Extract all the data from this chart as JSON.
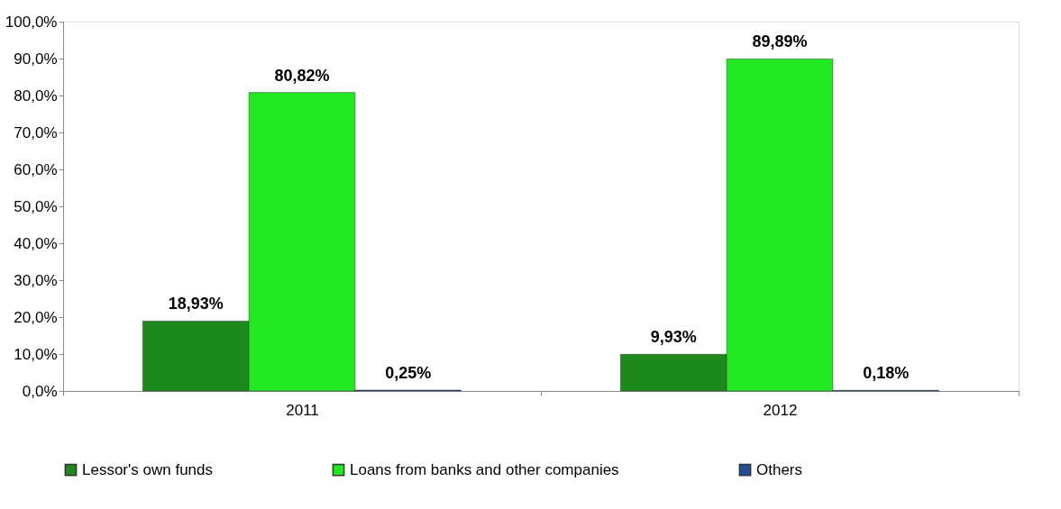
{
  "chart_data": {
    "type": "bar",
    "categories": [
      "2011",
      "2012"
    ],
    "series": [
      {
        "name": "Lessor's own funds",
        "color": "#1e8a1e",
        "values": [
          18.93,
          9.93
        ],
        "value_labels": [
          "18,93%",
          "9,93%"
        ]
      },
      {
        "name": "Loans from banks and other companies",
        "color": "#22e822",
        "values": [
          80.82,
          89.89
        ],
        "value_labels": [
          "80,82%",
          "89,89%"
        ]
      },
      {
        "name": "Others",
        "color": "#1f4f9f",
        "values": [
          0.25,
          0.18
        ],
        "value_labels": [
          "0,25%",
          "0,18%"
        ]
      }
    ],
    "ylim": [
      0,
      100
    ],
    "yticks": [
      {
        "value": 0,
        "label": "0,0%"
      },
      {
        "value": 10,
        "label": "10,0%"
      },
      {
        "value": 20,
        "label": "20,0%"
      },
      {
        "value": 30,
        "label": "30,0%"
      },
      {
        "value": 40,
        "label": "40,0%"
      },
      {
        "value": 50,
        "label": "50,0%"
      },
      {
        "value": 60,
        "label": "60,0%"
      },
      {
        "value": 70,
        "label": "70,0%"
      },
      {
        "value": 80,
        "label": "80,0%"
      },
      {
        "value": 90,
        "label": "90,0%"
      },
      {
        "value": 100,
        "label": "100,0%"
      }
    ],
    "grid": false,
    "legend": "bottom"
  }
}
